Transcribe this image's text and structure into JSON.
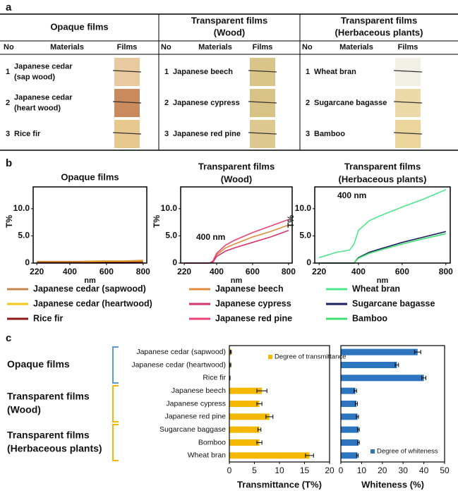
{
  "panel_labels": [
    "a",
    "b",
    "c"
  ],
  "table": {
    "groups": [
      {
        "title": [
          "Opaque films"
        ],
        "columns": [
          "No",
          "Materials",
          "Films"
        ],
        "rows": [
          {
            "no": 1,
            "material": [
              "Japanese cedar",
              "(sap wood)"
            ]
          },
          {
            "no": 2,
            "material": [
              "Japanese cedar",
              "(heart wood)"
            ]
          },
          {
            "no": 3,
            "material": [
              "Rice fir"
            ]
          }
        ]
      },
      {
        "title": [
          "Transparent films",
          "(Wood)"
        ],
        "columns": [
          "No",
          "Materials",
          "Films"
        ],
        "rows": [
          {
            "no": 1,
            "material": [
              "Japanese beech"
            ]
          },
          {
            "no": 2,
            "material": [
              "Japanese cypress"
            ]
          },
          {
            "no": 3,
            "material": [
              "Japanese red pine"
            ]
          }
        ]
      },
      {
        "title": [
          "Transparent films",
          "(Herbaceous plants)"
        ],
        "columns": [
          "No",
          "Materials",
          "Films"
        ],
        "rows": [
          {
            "no": 1,
            "material": [
              "Wheat bran"
            ]
          },
          {
            "no": 2,
            "material": [
              "Sugarcane bagasse"
            ]
          },
          {
            "no": 3,
            "material": [
              "Bamboo"
            ]
          }
        ]
      }
    ]
  },
  "chart_data": [
    {
      "type": "line",
      "title": [
        "Opaque films"
      ],
      "xlabel": "nm",
      "ylabel": "T%",
      "x": [
        220,
        300,
        360,
        380,
        400,
        450,
        500,
        600,
        700,
        800
      ],
      "xlim": [
        200,
        820
      ],
      "xticks": [
        220,
        400,
        600,
        800
      ],
      "ylim": [
        0,
        14
      ],
      "yticks": [
        0,
        {
          "value": 5,
          "label": "5.0"
        },
        {
          "value": 10,
          "label": "10.0"
        }
      ],
      "series": [
        {
          "name": "Japanese cedar (sapwood)",
          "color": "#c8874a",
          "values": [
            0.3,
            0.3,
            0.3,
            0.3,
            0.3,
            0.3,
            0.35,
            0.4,
            0.4,
            0.5
          ]
        },
        {
          "name": "Japanese cedar (heartwood)",
          "color": "#f5c518",
          "values": [
            0.2,
            0.2,
            0.2,
            0.2,
            0.2,
            0.2,
            0.25,
            0.3,
            0.3,
            0.35
          ]
        },
        {
          "name": "Rice fir",
          "color": "#8b1a1a",
          "values": [
            0.1,
            0.1,
            0.1,
            0.1,
            0.1,
            0.1,
            0.1,
            0.15,
            0.15,
            0.2
          ]
        }
      ]
    },
    {
      "type": "line",
      "title": [
        "Transparent films",
        "(Wood)"
      ],
      "xlabel": "nm",
      "ylabel": "T%",
      "annotation": "400 nm",
      "x": [
        220,
        300,
        360,
        380,
        400,
        450,
        500,
        600,
        700,
        800
      ],
      "xlim": [
        200,
        820
      ],
      "xticks": [
        220,
        400,
        600,
        800
      ],
      "ylim": [
        0,
        14
      ],
      "yticks": [
        0,
        {
          "value": 5,
          "label": "5.0"
        },
        {
          "value": 10,
          "label": "10.0"
        }
      ],
      "series": [
        {
          "name": "Japanese beech",
          "color": "#e08a3c",
          "values": [
            0,
            0,
            0,
            0.3,
            1.5,
            2.8,
            3.5,
            4.8,
            5.8,
            7.0
          ]
        },
        {
          "name": "Japanese cypress",
          "color": "#d6336c",
          "values": [
            0,
            0,
            0,
            0.2,
            1.2,
            2.2,
            2.8,
            3.8,
            4.8,
            6.0
          ]
        },
        {
          "name": "Japanese red pine",
          "color": "#e8447a",
          "values": [
            0,
            0,
            0,
            0.4,
            1.8,
            3.3,
            4.2,
            5.6,
            6.8,
            8.0
          ]
        }
      ]
    },
    {
      "type": "line",
      "title": [
        "Transparent films",
        "(Herbaceous plants)"
      ],
      "xlabel": "nm",
      "ylabel": "T%",
      "annotation": "400 nm",
      "x": [
        220,
        300,
        360,
        380,
        400,
        450,
        500,
        600,
        700,
        800
      ],
      "xlim": [
        200,
        820
      ],
      "xticks": [
        220,
        400,
        600,
        800
      ],
      "ylim": [
        0,
        14
      ],
      "yticks": [
        0,
        {
          "value": 5,
          "label": "5.0"
        },
        {
          "value": 10,
          "label": "10.0"
        }
      ],
      "series": [
        {
          "name": "Wheat bran",
          "color": "#4ee68a",
          "values": [
            1.0,
            2.0,
            2.4,
            3.5,
            6.0,
            7.8,
            8.7,
            10.3,
            11.8,
            13.5
          ]
        },
        {
          "name": "Sugarcane bagasse",
          "color": "#1a1f5e",
          "values": [
            0,
            0,
            0,
            0,
            1.0,
            2.0,
            2.6,
            3.8,
            4.8,
            5.8
          ]
        },
        {
          "name": "Bamboo",
          "color": "#3de070",
          "values": [
            0,
            0,
            0,
            0,
            0.9,
            1.8,
            2.4,
            3.5,
            4.5,
            5.4
          ]
        }
      ]
    },
    {
      "type": "hbar",
      "xlabel": "Transmittance (T%)",
      "name": "Degree of transmittance",
      "legend": "upper right",
      "color": "#f5b800",
      "categories": [
        "Japanese cedar (sapwood)",
        "Japanese cedar (heartwood)",
        "Rice fir",
        "Japanese beech",
        "Japanese cypress",
        "Japanese red pine",
        "Sugarcane baggase",
        "Bomboo",
        "Wheat bran"
      ],
      "values": [
        0.3,
        0.2,
        0.1,
        6.5,
        6.0,
        8.0,
        6.0,
        6.0,
        16.0
      ],
      "errors": [
        0.1,
        0.1,
        0.05,
        1.0,
        0.5,
        0.7,
        0.3,
        0.5,
        0.8
      ],
      "xlim": [
        0,
        20
      ],
      "xticks": [
        0,
        5,
        10,
        15,
        20
      ]
    },
    {
      "type": "hbar",
      "xlabel": "Whiteness (%)",
      "name": "Degree of whiteness",
      "legend": "lower right",
      "color": "#2e75c0",
      "values": [
        37,
        27,
        40,
        7,
        7.5,
        8,
        8.5,
        8.5,
        8
      ],
      "errors": [
        1.5,
        0.8,
        1,
        0.6,
        0.5,
        0.5,
        0.4,
        0.4,
        0.4
      ],
      "xlim": [
        0,
        50
      ],
      "xticks": [
        0,
        10,
        20,
        30,
        40,
        50
      ]
    }
  ],
  "group_labels": [
    {
      "label": [
        "Opaque films"
      ],
      "color": "#5b9bd5"
    },
    {
      "label": [
        "Transparent films",
        "(Wood)"
      ],
      "color": "#f5b800"
    },
    {
      "label": [
        "Transparent films",
        "(Herbaceous plants)"
      ],
      "color": "#f5b800"
    }
  ]
}
